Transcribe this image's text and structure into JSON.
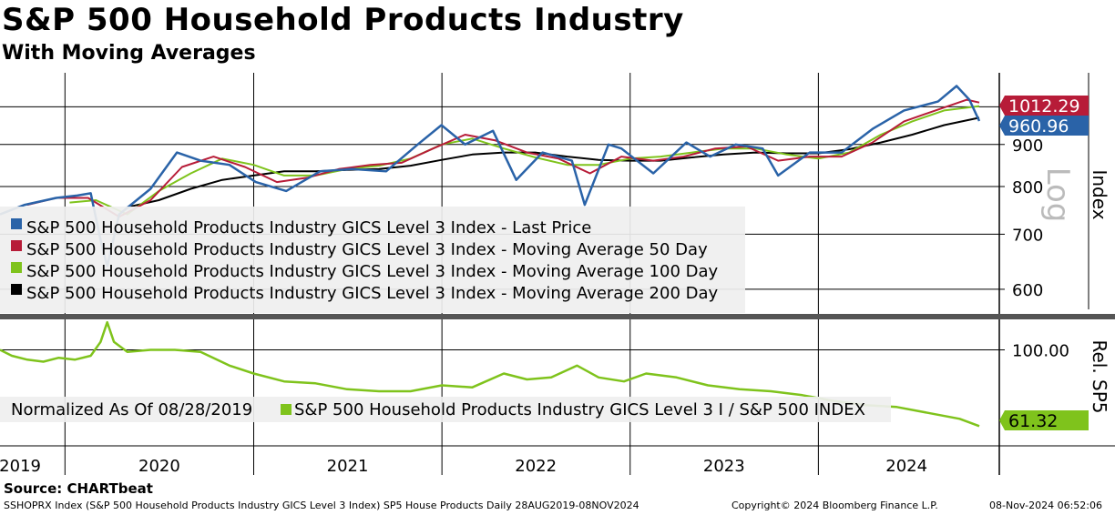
{
  "chart_data": {
    "type": "line",
    "title": "S&P 500 Household Products Industry",
    "subtitle": "With Moving Averages",
    "x_ticks": [
      "2019",
      "2020",
      "2021",
      "2022",
      "2023",
      "2024"
    ],
    "upper_panel": {
      "axis_label": "Index",
      "scale_label": "Log",
      "scale": "log",
      "y_ticks": [
        600,
        700,
        800,
        900
      ],
      "ylim": [
        560,
        1100
      ],
      "series": [
        {
          "name": "S&P 500 Household Products Industry GICS Level 3 Index - Last Price",
          "color": "#2a63a8",
          "last_label": "960.96",
          "x": [
            "2019-08-28",
            "2019-10-15",
            "2019-12-15",
            "2020-01-25",
            "2020-02-20",
            "2020-03-12",
            "2020-03-23",
            "2020-04-15",
            "2020-06-15",
            "2020-08-05",
            "2020-09-20",
            "2020-11-15",
            "2021-01-05",
            "2021-03-05",
            "2021-05-10",
            "2021-07-10",
            "2021-09-15",
            "2021-11-15",
            "2021-12-31",
            "2022-02-15",
            "2022-04-10",
            "2022-05-25",
            "2022-07-15",
            "2022-09-10",
            "2022-10-05",
            "2022-11-20",
            "2022-12-15",
            "2023-02-15",
            "2023-04-20",
            "2023-06-05",
            "2023-07-25",
            "2023-09-15",
            "2023-10-15",
            "2023-12-15",
            "2024-02-15",
            "2024-04-15",
            "2024-06-15",
            "2024-08-20",
            "2024-09-25",
            "2024-10-20",
            "2024-11-08"
          ],
          "y": [
            740,
            760,
            775,
            780,
            785,
            680,
            640,
            740,
            795,
            880,
            860,
            850,
            810,
            790,
            835,
            840,
            835,
            900,
            950,
            900,
            935,
            815,
            880,
            860,
            760,
            900,
            890,
            830,
            905,
            870,
            900,
            890,
            825,
            880,
            880,
            940,
            990,
            1015,
            1060,
            1020,
            961
          ]
        },
        {
          "name": "S&P 500 Household Products Industry GICS Level 3 Index - Moving Average 50 Day",
          "color": "#b71c38",
          "last_label": "1012.29",
          "x": [
            "2019-10-20",
            "2019-12-15",
            "2020-02-15",
            "2020-04-15",
            "2020-06-15",
            "2020-08-15",
            "2020-10-15",
            "2020-12-15",
            "2021-02-15",
            "2021-04-15",
            "2021-06-15",
            "2021-08-15",
            "2021-10-15",
            "2021-12-15",
            "2022-02-15",
            "2022-04-15",
            "2022-06-15",
            "2022-08-15",
            "2022-10-15",
            "2022-12-15",
            "2023-02-15",
            "2023-04-15",
            "2023-06-15",
            "2023-08-15",
            "2023-10-15",
            "2023-12-15",
            "2024-02-15",
            "2024-04-15",
            "2024-06-15",
            "2024-08-15",
            "2024-10-15",
            "2024-11-08"
          ],
          "y": [
            760,
            775,
            775,
            735,
            770,
            845,
            870,
            845,
            810,
            820,
            840,
            850,
            855,
            890,
            925,
            910,
            880,
            865,
            830,
            870,
            860,
            870,
            890,
            895,
            860,
            870,
            870,
            905,
            960,
            990,
            1020,
            1012
          ]
        },
        {
          "name": "S&P 500 Household Products Industry GICS Level 3 Index - Moving Average 100 Day",
          "color": "#7fc31c",
          "x": [
            "2020-01-10",
            "2020-03-01",
            "2020-05-01",
            "2020-07-01",
            "2020-09-01",
            "2020-11-01",
            "2021-01-01",
            "2021-03-01",
            "2021-05-01",
            "2021-07-01",
            "2021-09-01",
            "2021-11-01",
            "2022-01-01",
            "2022-03-01",
            "2022-05-01",
            "2022-07-01",
            "2022-09-01",
            "2022-11-01",
            "2023-01-01",
            "2023-03-01",
            "2023-05-01",
            "2023-07-01",
            "2023-09-01",
            "2023-11-01",
            "2024-01-01",
            "2024-03-01",
            "2024-05-01",
            "2024-07-01",
            "2024-09-01",
            "2024-11-08"
          ],
          "y": [
            765,
            770,
            740,
            790,
            830,
            865,
            850,
            825,
            825,
            840,
            848,
            865,
            900,
            915,
            890,
            868,
            850,
            850,
            865,
            870,
            880,
            890,
            890,
            875,
            865,
            880,
            925,
            960,
            990,
            1002
          ]
        },
        {
          "name": "S&P 500 Household Products Industry GICS Level 3 Index - Moving Average 200 Day",
          "color": "#000000",
          "x": [
            "2020-05-01",
            "2020-07-01",
            "2020-09-01",
            "2020-11-01",
            "2021-01-01",
            "2021-03-01",
            "2021-05-01",
            "2021-07-01",
            "2021-09-01",
            "2021-11-01",
            "2022-01-01",
            "2022-03-01",
            "2022-05-01",
            "2022-07-01",
            "2022-09-01",
            "2022-11-01",
            "2023-01-01",
            "2023-03-01",
            "2023-05-01",
            "2023-07-01",
            "2023-09-01",
            "2023-11-01",
            "2024-01-01",
            "2024-03-01",
            "2024-05-01",
            "2024-07-01",
            "2024-09-01",
            "2024-11-08"
          ],
          "y": [
            755,
            770,
            795,
            815,
            825,
            835,
            835,
            838,
            840,
            848,
            862,
            875,
            880,
            880,
            870,
            862,
            860,
            860,
            868,
            875,
            880,
            878,
            878,
            888,
            905,
            925,
            950,
            970
          ]
        }
      ],
      "legend": {
        "placement": "bottom-left"
      }
    },
    "lower_panel": {
      "axis_label": "Rel. SP5",
      "y_ticks": [
        "100.00"
      ],
      "ylim": [
        55,
        115
      ],
      "note": "Normalized As Of 08/28/2019",
      "series": [
        {
          "name": "S&P 500 Household Products Industry GICS Level 3 I / S&P 500 INDEX",
          "color": "#7fc31c",
          "last_label": "61.32",
          "x": [
            "2019-08-28",
            "2019-09-20",
            "2019-10-20",
            "2019-11-20",
            "2019-12-20",
            "2020-01-20",
            "2020-02-20",
            "2020-03-10",
            "2020-03-23",
            "2020-04-05",
            "2020-05-01",
            "2020-06-15",
            "2020-08-01",
            "2020-09-20",
            "2020-11-15",
            "2021-01-01",
            "2021-03-01",
            "2021-05-01",
            "2021-07-01",
            "2021-09-01",
            "2021-11-01",
            "2022-01-01",
            "2022-03-01",
            "2022-05-01",
            "2022-06-15",
            "2022-08-01",
            "2022-09-20",
            "2022-11-01",
            "2022-12-20",
            "2023-02-01",
            "2023-04-01",
            "2023-06-01",
            "2023-08-01",
            "2023-10-01",
            "2023-12-01",
            "2024-02-01",
            "2024-04-01",
            "2024-06-01",
            "2024-08-01",
            "2024-10-01",
            "2024-11-08"
          ],
          "y": [
            100,
            97,
            95,
            94,
            96,
            95,
            97,
            104,
            114,
            104,
            99,
            100,
            100,
            99,
            92,
            88,
            84,
            83,
            80,
            79,
            79,
            82,
            81,
            88,
            85,
            86,
            92,
            86,
            84,
            88,
            86,
            82,
            80,
            79,
            77,
            74,
            72,
            71,
            68,
            65,
            61.32
          ]
        }
      ],
      "legend": {
        "placement": "bottom-left"
      }
    }
  },
  "source": "Source: CHARTbeat",
  "footer": {
    "left": "SSHOPRX Index (S&P 500 Household Products Industry GICS Level 3 Index) SP5 House Products  Daily 28AUG2019-08NOV2024",
    "middle": "Copyright© 2024 Bloomberg Finance L.P.",
    "right": "08-Nov-2024 06:52:06"
  }
}
